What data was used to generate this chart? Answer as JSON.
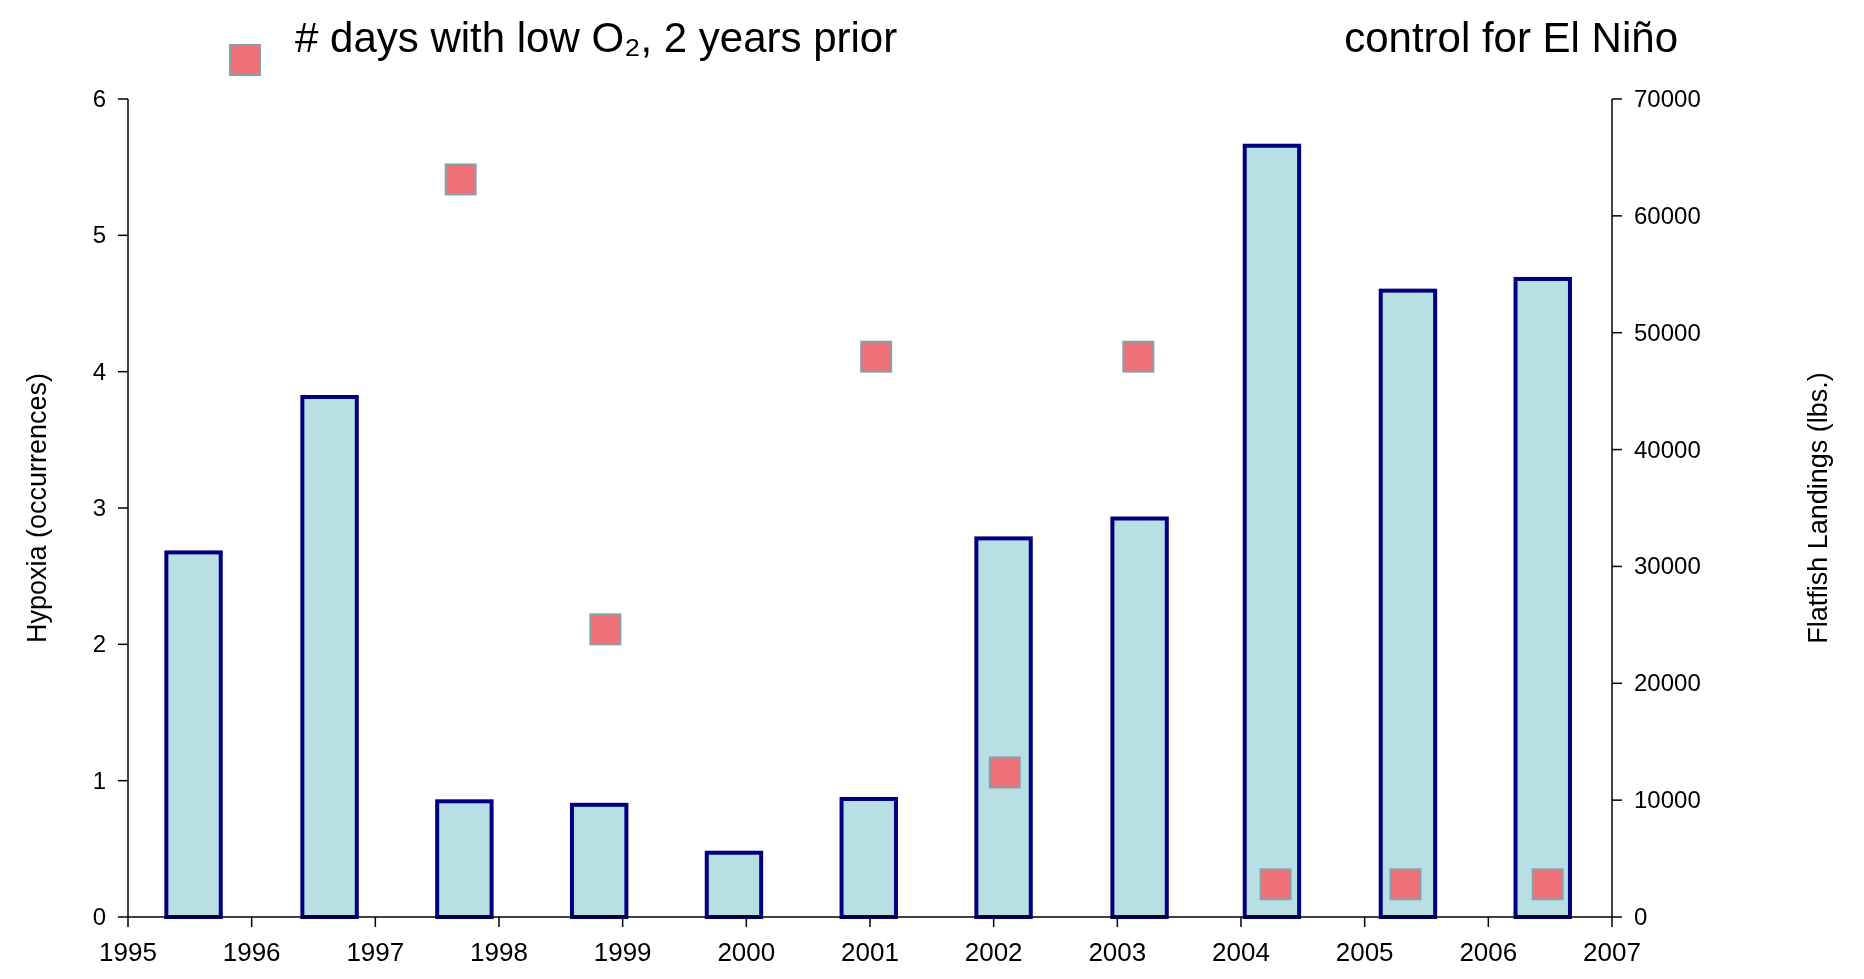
{
  "chart_data": {
    "type": "bar",
    "ylabel": "Hypoxia (occurrences)",
    "y2label": "Flatfish Landings (lbs.)",
    "xlim": [
      1995,
      2007
    ],
    "xticks": [
      1995,
      1996,
      1997,
      1998,
      1999,
      2000,
      2001,
      2002,
      2003,
      2004,
      2005,
      2006,
      2007
    ],
    "ylim": [
      0,
      6
    ],
    "yticks": [
      0,
      1,
      2,
      3,
      4,
      5,
      6
    ],
    "y2lim": [
      0,
      70000
    ],
    "y2ticks": [
      0,
      10000,
      20000,
      30000,
      40000,
      50000,
      60000,
      70000
    ],
    "grid": false,
    "legend": "top",
    "marker": "square",
    "annotations": [
      "control for El Niño"
    ],
    "series": [
      {
        "axis": "y2",
        "color": "#b8e0e4",
        "x": [
          1995.53,
          1996.63,
          1997.72,
          1998.81,
          1999.9,
          2000.99,
          2002.08,
          2003.18,
          2004.25,
          2005.35,
          2006.44
        ],
        "values": [
          31200,
          44500,
          9900,
          9600,
          5500,
          10100,
          32400,
          34100,
          66000,
          53600,
          54600
        ]
      },
      {
        "type": "scatter",
        "axis": "y",
        "name": "# days with low O₂, 2 years prior",
        "color": "#f07078",
        "x": [
          1997.69,
          1998.86,
          2001.05,
          2002.09,
          2003.17,
          2004.28,
          2005.33,
          2006.48
        ],
        "values": [
          5.41,
          2.11,
          4.11,
          1.06,
          4.11,
          0.24,
          0.24,
          0.24
        ]
      }
    ]
  }
}
